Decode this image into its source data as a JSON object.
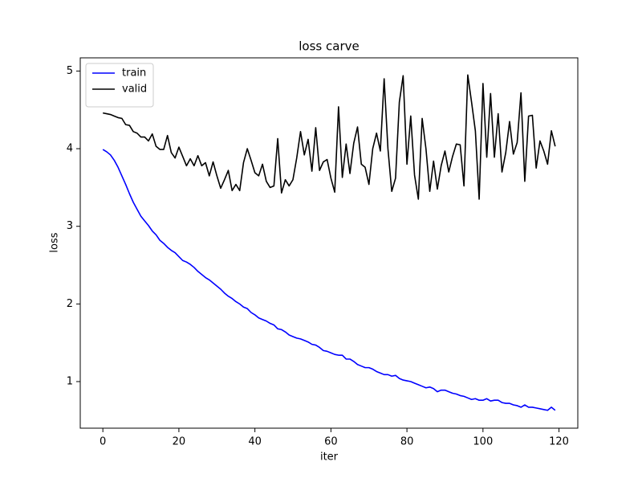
{
  "chart_data": {
    "type": "line",
    "title": "loss carve",
    "x_label": "iter",
    "y_label": "loss",
    "x": [
      0,
      1,
      2,
      3,
      4,
      5,
      6,
      7,
      8,
      9,
      10,
      11,
      12,
      13,
      14,
      15,
      16,
      17,
      18,
      19,
      20,
      21,
      22,
      23,
      24,
      25,
      26,
      27,
      28,
      29,
      30,
      31,
      32,
      33,
      34,
      35,
      36,
      37,
      38,
      39,
      40,
      41,
      42,
      43,
      44,
      45,
      46,
      47,
      48,
      49,
      50,
      51,
      52,
      53,
      54,
      55,
      56,
      57,
      58,
      59,
      60,
      61,
      62,
      63,
      64,
      65,
      66,
      67,
      68,
      69,
      70,
      71,
      72,
      73,
      74,
      75,
      76,
      77,
      78,
      79,
      80,
      81,
      82,
      83,
      84,
      85,
      86,
      87,
      88,
      89,
      90,
      91,
      92,
      93,
      94,
      95,
      96,
      97,
      98,
      99,
      100,
      101,
      102,
      103,
      104,
      105,
      106,
      107,
      108,
      109,
      110,
      111,
      112,
      113,
      114,
      115,
      116,
      117,
      118,
      119
    ],
    "series": [
      {
        "name": "train",
        "color": "#0000ff",
        "values": [
          3.99,
          3.96,
          3.92,
          3.85,
          3.76,
          3.65,
          3.54,
          3.42,
          3.31,
          3.22,
          3.13,
          3.07,
          3.01,
          2.94,
          2.89,
          2.82,
          2.78,
          2.73,
          2.69,
          2.66,
          2.61,
          2.56,
          2.54,
          2.51,
          2.47,
          2.42,
          2.38,
          2.34,
          2.31,
          2.27,
          2.23,
          2.19,
          2.14,
          2.1,
          2.07,
          2.03,
          2.0,
          1.96,
          1.94,
          1.89,
          1.86,
          1.82,
          1.8,
          1.78,
          1.75,
          1.73,
          1.68,
          1.67,
          1.64,
          1.6,
          1.58,
          1.56,
          1.55,
          1.53,
          1.51,
          1.48,
          1.47,
          1.44,
          1.4,
          1.39,
          1.37,
          1.35,
          1.34,
          1.34,
          1.29,
          1.29,
          1.26,
          1.22,
          1.2,
          1.18,
          1.18,
          1.16,
          1.13,
          1.11,
          1.09,
          1.09,
          1.07,
          1.08,
          1.04,
          1.02,
          1.01,
          1.0,
          0.98,
          0.96,
          0.94,
          0.92,
          0.93,
          0.91,
          0.87,
          0.89,
          0.89,
          0.87,
          0.85,
          0.84,
          0.82,
          0.81,
          0.79,
          0.77,
          0.78,
          0.76,
          0.76,
          0.78,
          0.75,
          0.76,
          0.76,
          0.73,
          0.72,
          0.72,
          0.7,
          0.69,
          0.67,
          0.7,
          0.67,
          0.67,
          0.66,
          0.65,
          0.64,
          0.63,
          0.67,
          0.63
        ]
      },
      {
        "name": "valid",
        "color": "#000000",
        "values": [
          4.46,
          4.45,
          4.44,
          4.42,
          4.4,
          4.39,
          4.31,
          4.3,
          4.22,
          4.2,
          4.15,
          4.15,
          4.1,
          4.19,
          4.03,
          3.99,
          3.99,
          4.17,
          3.95,
          3.88,
          4.02,
          3.9,
          3.78,
          3.87,
          3.78,
          3.91,
          3.78,
          3.82,
          3.65,
          3.83,
          3.65,
          3.49,
          3.6,
          3.72,
          3.46,
          3.54,
          3.46,
          3.82,
          4.0,
          3.85,
          3.69,
          3.65,
          3.8,
          3.58,
          3.5,
          3.52,
          4.13,
          3.43,
          3.6,
          3.52,
          3.6,
          3.88,
          4.22,
          3.92,
          4.12,
          3.71,
          4.27,
          3.72,
          3.83,
          3.86,
          3.62,
          3.44,
          4.54,
          3.63,
          4.06,
          3.68,
          4.07,
          4.28,
          3.8,
          3.76,
          3.54,
          4.0,
          4.2,
          3.97,
          4.9,
          4.0,
          3.45,
          3.62,
          4.6,
          4.94,
          3.8,
          4.42,
          3.66,
          3.35,
          4.39,
          4.0,
          3.45,
          3.84,
          3.48,
          3.78,
          3.97,
          3.7,
          3.9,
          4.06,
          4.05,
          3.52,
          4.95,
          4.6,
          4.23,
          3.35,
          4.84,
          3.89,
          4.71,
          3.89,
          4.45,
          3.7,
          3.95,
          4.35,
          3.93,
          4.08,
          4.72,
          3.58,
          4.42,
          4.43,
          3.75,
          4.1,
          3.97,
          3.8,
          4.23,
          4.03
        ]
      }
    ],
    "xlim": [
      -5.95,
      124.95
    ],
    "ylim": [
      0.4,
      5.17
    ],
    "xticks": [
      0,
      20,
      40,
      60,
      80,
      100,
      120
    ],
    "yticks": [
      1,
      2,
      3,
      4,
      5
    ],
    "legend": "upper left",
    "grid": false
  }
}
